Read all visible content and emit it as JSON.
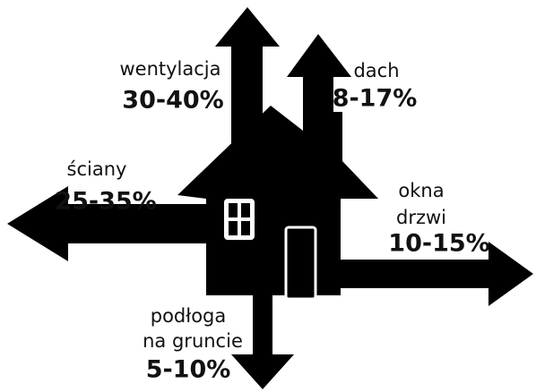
{
  "labels": [
    {
      "lines": [
        "wentylacja"
      ],
      "range": "30-40%"
    },
    {
      "lines": [
        "dach"
      ],
      "range": "8-17%"
    },
    {
      "lines": [
        "ściany"
      ],
      "range": "25-35%"
    },
    {
      "lines": [
        "okna",
        "drzwi"
      ],
      "range": "10-15%"
    },
    {
      "lines": [
        "podłoga",
        "na gruncie"
      ],
      "range": "5-10%"
    }
  ]
}
